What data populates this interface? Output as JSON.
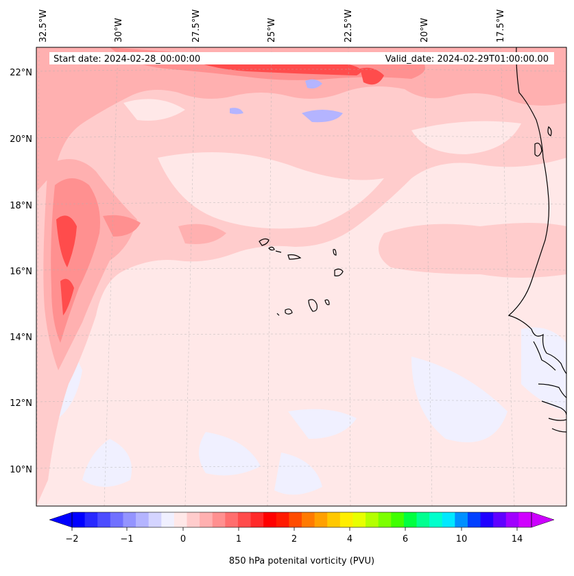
{
  "header": {
    "start_date": "Start date: 2024-02-28_00:00:00",
    "valid_date": "Valid_date: 2024-02-29T01:00:00.00"
  },
  "longitude_labels": [
    "32.5°W",
    "30°W",
    "27.5°W",
    "25°W",
    "22.5°W",
    "20°W",
    "17.5°W"
  ],
  "latitude_labels": [
    "22°N",
    "20°N",
    "18°N",
    "16°N",
    "14°N",
    "12°N",
    "10°N"
  ],
  "colorbar": {
    "label": "850 hPa potenital vorticity (PVU)",
    "tick_labels": [
      "−2",
      "−1",
      "0",
      "1",
      "2",
      "4",
      "6",
      "10",
      "14"
    ],
    "colors": [
      "#0000ff",
      "#2828ff",
      "#4c4cff",
      "#7070ff",
      "#9494ff",
      "#b4b4ff",
      "#d4d4ff",
      "#f0f0ff",
      "#ffe8e8",
      "#ffcccc",
      "#ffb0b0",
      "#ff9090",
      "#ff6e6e",
      "#ff4c4c",
      "#ff2a2a",
      "#ff0000",
      "#ff1a00",
      "#ff4c00",
      "#ff7a00",
      "#ffa000",
      "#ffc800",
      "#ffee00",
      "#e8ff00",
      "#b4ff00",
      "#7cff00",
      "#40ff00",
      "#00ff40",
      "#00ff90",
      "#00ffcc",
      "#00e8ff",
      "#0090ff",
      "#0040ff",
      "#2000ff",
      "#6000ff",
      "#a000ff",
      "#d000ff"
    ],
    "extend_low_color": "#0000ff",
    "extend_high_color": "#cc00ff"
  },
  "field_colors": {
    "background": "#ffe8e8",
    "weak_positive": "#ffcccc",
    "moderate_positive": "#ffb0b0",
    "strong_positive": "#ff9090",
    "very_strong_positive": "#ff4c4c",
    "weak_negative": "#f0f0ff",
    "moderate_negative": "#b4b4ff",
    "coastline": "#000000"
  }
}
